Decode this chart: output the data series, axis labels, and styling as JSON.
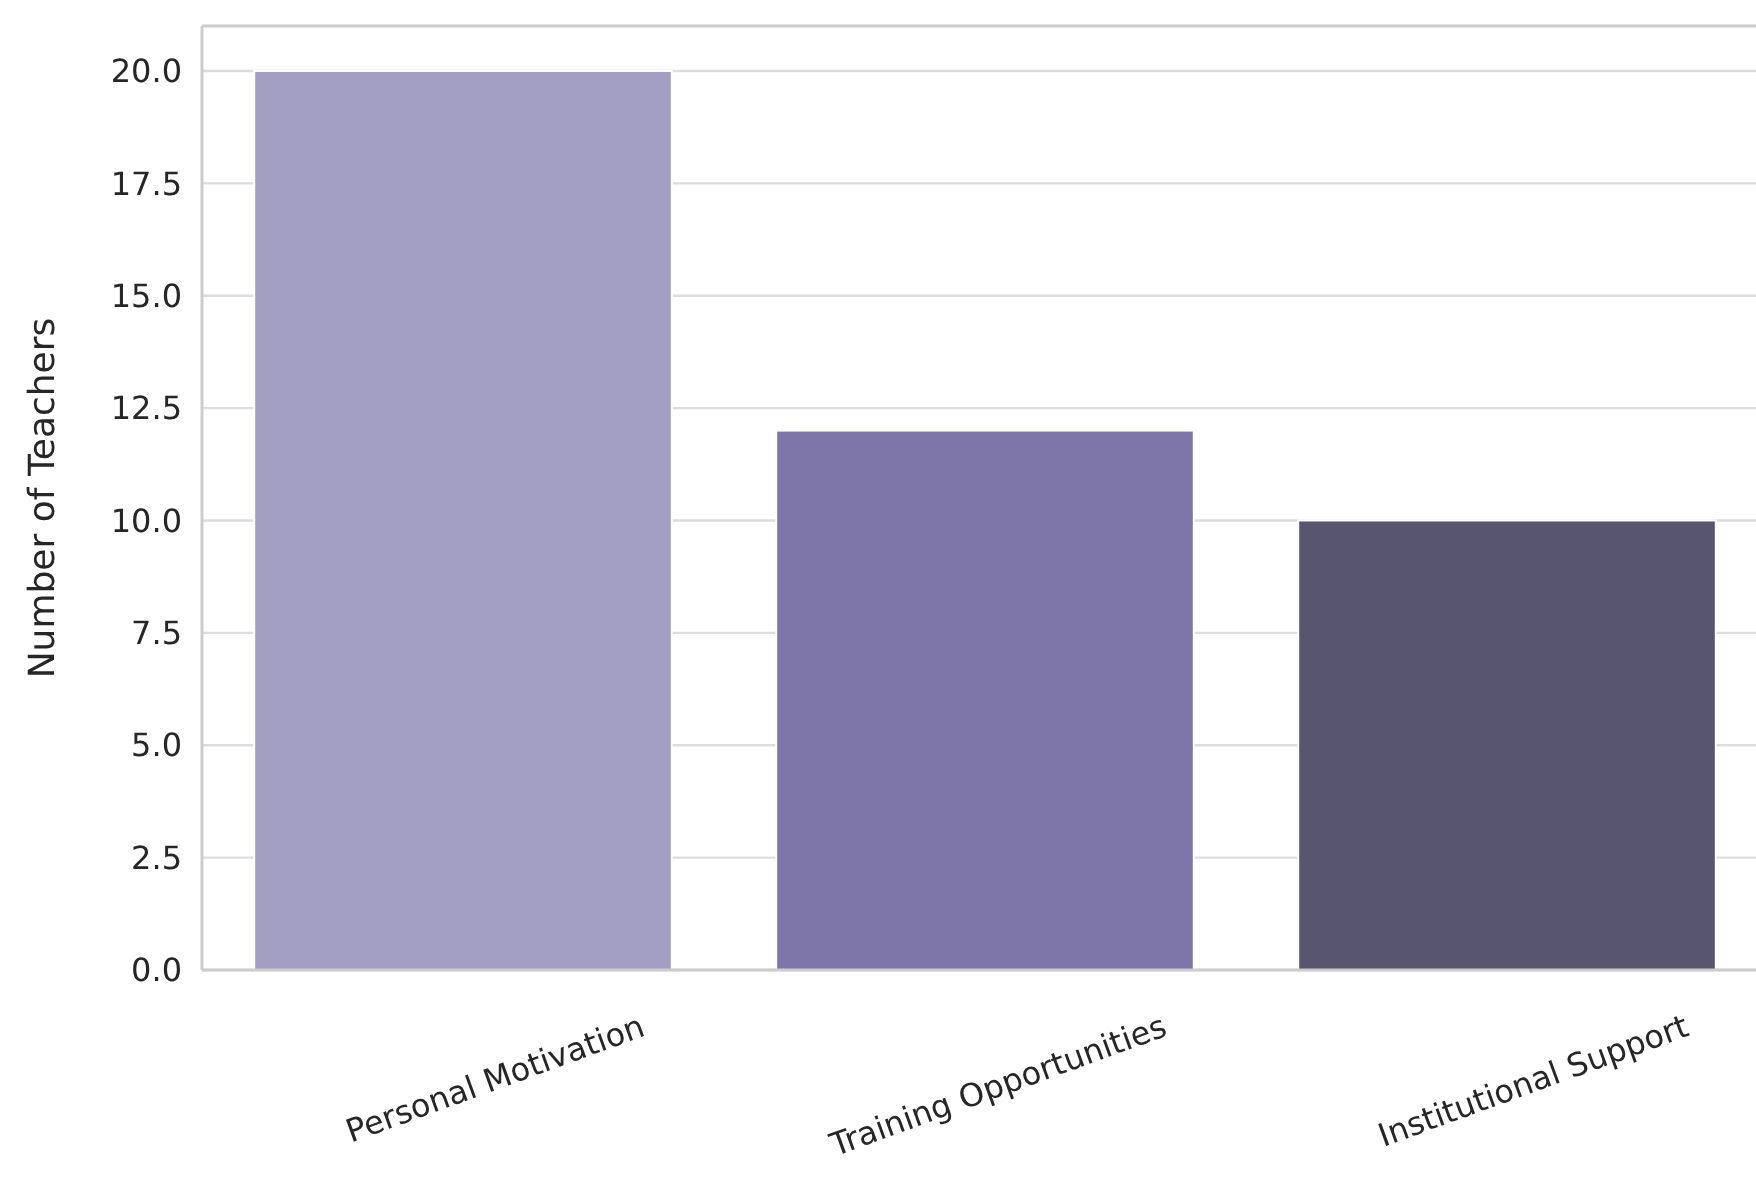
{
  "chart_data": {
    "type": "bar",
    "ylabel": "Number of Teachers",
    "categories": [
      "Personal Motivation",
      "Training Opportunities",
      "Institutional Support"
    ],
    "values": [
      20,
      12,
      10
    ],
    "colors": [
      "#a39fc3",
      "#7e76a8",
      "#58556e"
    ],
    "ylim": [
      0,
      21
    ],
    "yticks": [
      {
        "value": 0,
        "label": "0.0"
      },
      {
        "value": 2.5,
        "label": "2.5"
      },
      {
        "value": 5,
        "label": "5.0"
      },
      {
        "value": 7.5,
        "label": "7.5"
      },
      {
        "value": 10,
        "label": "10.0"
      },
      {
        "value": 12.5,
        "label": "12.5"
      },
      {
        "value": 15,
        "label": "15.0"
      },
      {
        "value": 17.5,
        "label": "17.5"
      },
      {
        "value": 20,
        "label": "20.0"
      }
    ],
    "grid": "y"
  }
}
